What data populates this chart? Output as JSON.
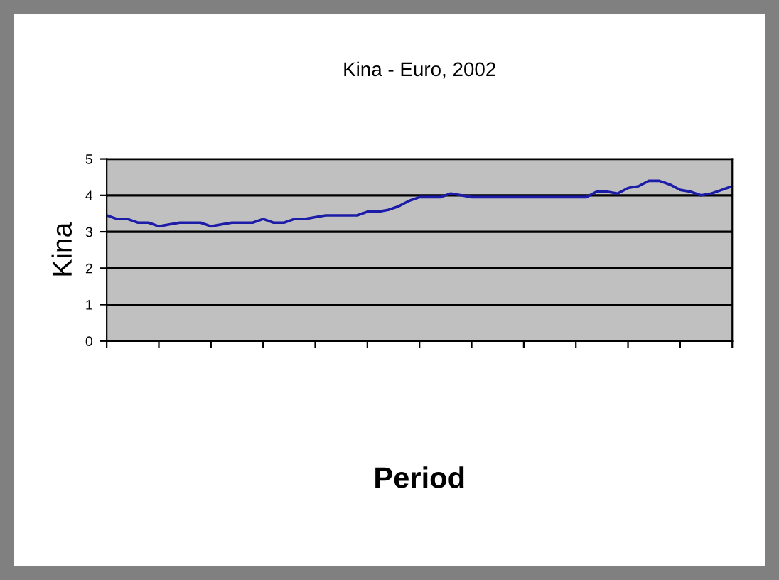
{
  "chart_data": {
    "type": "line",
    "title": "Kina - Euro, 2002",
    "xlabel": "Period",
    "ylabel": "Kina",
    "categories": [
      null,
      null,
      null,
      null,
      null,
      null,
      null,
      null,
      null,
      null,
      null,
      null,
      null,
      null,
      null,
      null,
      null,
      null,
      null,
      null,
      null,
      null,
      null,
      null,
      null,
      null,
      null,
      null,
      null,
      null,
      null,
      null,
      null,
      null,
      null,
      null,
      null,
      null,
      null,
      null,
      null,
      null,
      null,
      null,
      null,
      null,
      null,
      null,
      null,
      null,
      null,
      null,
      null,
      null,
      null,
      null,
      null,
      null,
      null,
      null,
      null
    ],
    "series": [
      {
        "color": "#1c1ca8",
        "values": [
          3.45,
          3.35,
          3.35,
          3.25,
          3.25,
          3.15,
          3.2,
          3.25,
          3.25,
          3.25,
          3.15,
          3.2,
          3.25,
          3.25,
          3.25,
          3.35,
          3.25,
          3.25,
          3.35,
          3.35,
          3.4,
          3.45,
          3.45,
          3.45,
          3.45,
          3.55,
          3.55,
          3.6,
          3.7,
          3.85,
          3.95,
          3.95,
          3.95,
          4.05,
          4.0,
          3.95,
          3.95,
          3.95,
          3.95,
          3.95,
          3.95,
          3.95,
          3.95,
          3.95,
          3.95,
          3.95,
          3.95,
          4.1,
          4.1,
          4.05,
          4.2,
          4.25,
          4.4,
          4.4,
          4.3,
          4.15,
          4.1,
          4.0,
          4.05,
          4.15,
          4.25
        ]
      }
    ],
    "ylim": [
      0,
      5
    ],
    "yticks": [
      0,
      1,
      2,
      3,
      4,
      5
    ],
    "grid": "y",
    "tick_labels": "y",
    "marker": "none",
    "line_style": "solid",
    "legend": false
  }
}
